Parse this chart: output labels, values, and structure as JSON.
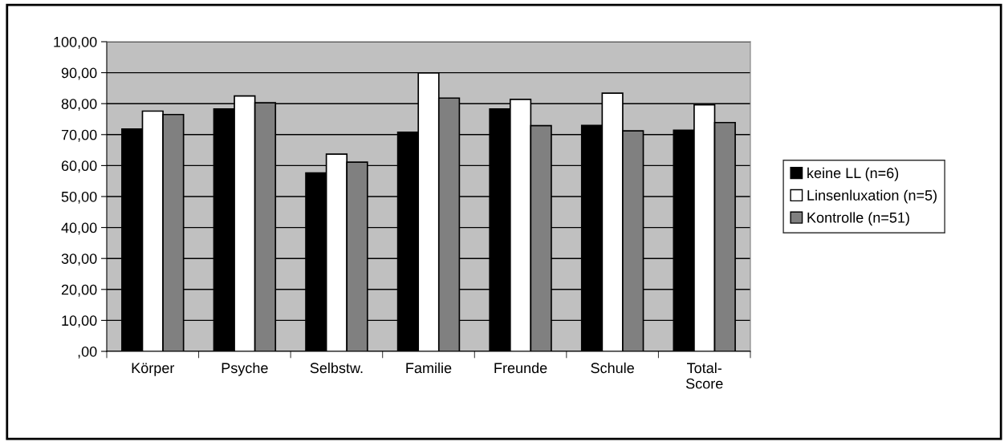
{
  "chart_data": {
    "type": "bar",
    "categories": [
      "Körper",
      "Psyche",
      "Selbstw.",
      "Familie",
      "Freunde",
      "Schule",
      "Total-\nScore"
    ],
    "series": [
      {
        "name": "keine LL (n=6)",
        "color": "#000000",
        "values": [
          71.8,
          78.3,
          57.6,
          70.8,
          78.3,
          73.0,
          71.4
        ]
      },
      {
        "name": "Linsenluxation (n=5)",
        "color": "#ffffff",
        "values": [
          77.6,
          82.5,
          63.7,
          89.9,
          81.4,
          83.4,
          79.6
        ]
      },
      {
        "name": "Kontrolle (n=51)",
        "color": "#808080",
        "values": [
          76.5,
          80.3,
          61.1,
          81.8,
          72.9,
          71.2,
          73.9
        ]
      }
    ],
    "ylim": [
      0,
      100
    ],
    "yticks": [
      {
        "value": 0,
        "label": ",00"
      },
      {
        "value": 10,
        "label": "10,00"
      },
      {
        "value": 20,
        "label": "20,00"
      },
      {
        "value": 30,
        "label": "30,00"
      },
      {
        "value": 40,
        "label": "40,00"
      },
      {
        "value": 50,
        "label": "50,00"
      },
      {
        "value": 60,
        "label": "60,00"
      },
      {
        "value": 70,
        "label": "70,00"
      },
      {
        "value": 80,
        "label": "80,00"
      },
      {
        "value": 90,
        "label": "90,00"
      },
      {
        "value": 100,
        "label": "100,00"
      }
    ],
    "grid": "y",
    "legend": "right"
  }
}
